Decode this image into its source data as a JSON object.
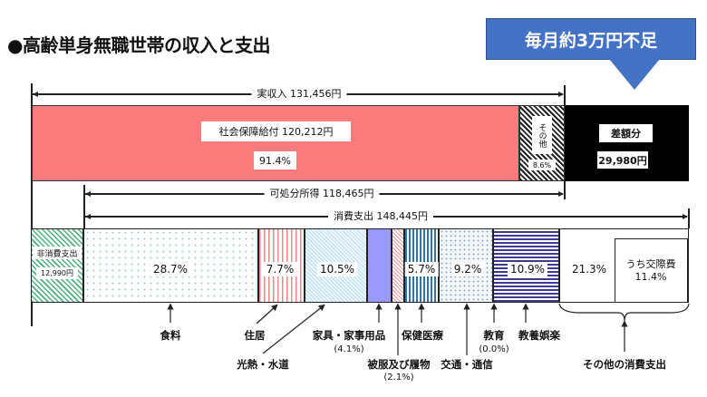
{
  "title": "●高齢単身無職世帯の収入と支出",
  "callout": "毎月約3万円不足",
  "income": {
    "label": "実収入 131,456円",
    "social_security": "社会保障給付 120,212円",
    "social_security_pct": "91.4%",
    "other_label": "その他",
    "other_pct": "8.6%",
    "deficit_label": "差額分",
    "deficit_value": "29,980円"
  },
  "disposable": "可処分所得 118,465円",
  "consumption": "消費支出 148,445円",
  "non_consumption": {
    "label": "非消費支出",
    "value": "12,990円"
  },
  "pcts": {
    "food": "28.7%",
    "housing": "7.7%",
    "utilities": "10.5%",
    "health": "5.7%",
    "transport": "9.2%",
    "culture": "10.9%",
    "other": "21.3%",
    "social": "うち交際費",
    "social_pct": "11.4%"
  },
  "captions": {
    "food": "食料",
    "housing": "住居",
    "utilities": "光熱・水道",
    "furniture": "家具・家事用品",
    "furniture_pct": "(4.1%)",
    "clothing": "被服及び履物",
    "clothing_pct": "(2.1%)",
    "health": "保健医療",
    "transport": "交通・通信",
    "education": "教育",
    "education_pct": "(0.0%)",
    "culture": "教養娯楽",
    "other": "その他の消費支出"
  },
  "colors": {
    "social_security": "#fb7c7c",
    "deficit": "#000000",
    "callout": "#4472c4",
    "furniture": "#9999ff",
    "culture": "#3b3b8a",
    "health": "#2e75b6"
  },
  "chart_data": {
    "type": "bar",
    "stacked": true,
    "income": {
      "categories": [
        "社会保障給付",
        "その他",
        "差額分"
      ],
      "values": [
        120212,
        11244,
        29980
      ],
      "pct": [
        91.4,
        8.6,
        null
      ]
    },
    "expenditure": {
      "categories": [
        "非消費支出",
        "食料",
        "住居",
        "光熱・水道",
        "家具・家事用品",
        "被服及び履物",
        "保健医療",
        "交通・通信",
        "教育",
        "教養娯楽",
        "その他の消費支出"
      ],
      "pct": [
        null,
        28.7,
        7.7,
        10.5,
        4.1,
        2.1,
        5.7,
        9.2,
        0.0,
        10.9,
        21.3
      ],
      "non_consumption_yen": 12990,
      "social_pct": 11.4
    },
    "totals": {
      "実収入": 131456,
      "可処分所得": 118465,
      "消費支出": 148445
    }
  }
}
